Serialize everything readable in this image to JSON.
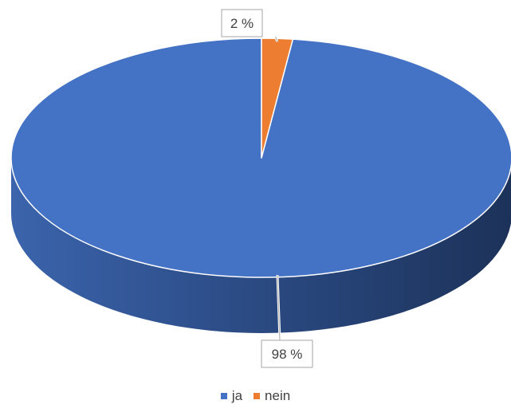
{
  "chart_data": {
    "type": "pie",
    "style": "3d",
    "categories": [
      "ja",
      "nein"
    ],
    "values": [
      98,
      2
    ],
    "data_labels": [
      "98 %",
      "2 %"
    ],
    "colors": [
      "#4472C4",
      "#ED7D31"
    ],
    "legend_position": "bottom",
    "title": ""
  },
  "legend": {
    "items": [
      {
        "label": "ja",
        "color": "#4472C4"
      },
      {
        "label": "nein",
        "color": "#ED7D31"
      }
    ]
  }
}
